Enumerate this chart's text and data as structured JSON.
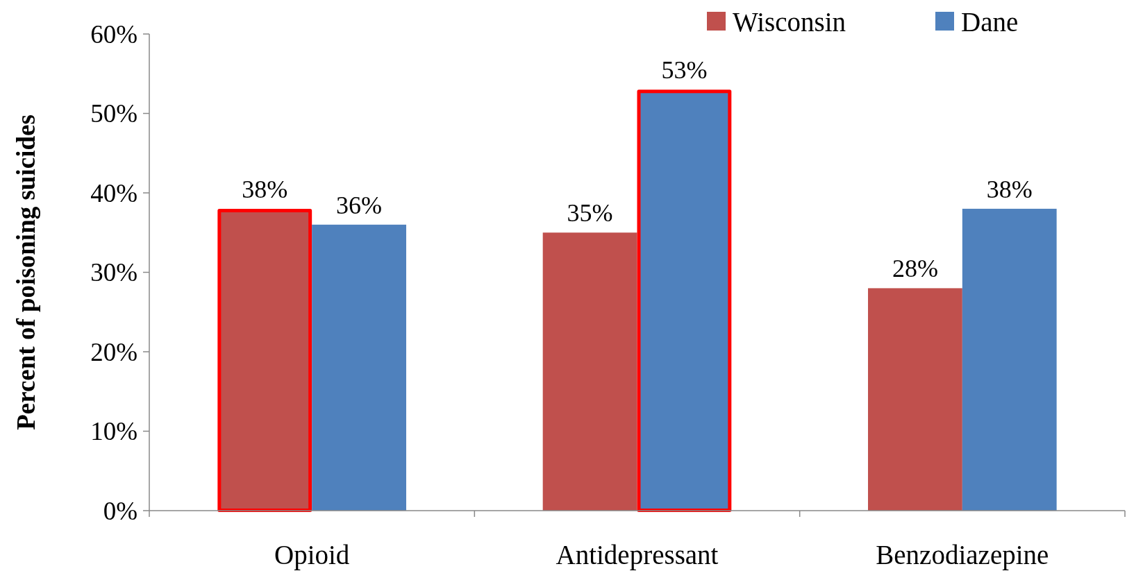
{
  "chart_data": {
    "type": "bar",
    "ylabel": "Percent of poisoning suicides",
    "categories": [
      "Opioid",
      "Antidepressant",
      "Benzodiazepine"
    ],
    "series": [
      {
        "name": "Wisconsin",
        "color": "#c0504d",
        "values": [
          38,
          35,
          28
        ]
      },
      {
        "name": "Dane",
        "color": "#4f81bd",
        "values": [
          36,
          53,
          38
        ]
      }
    ],
    "ylim": [
      0,
      60
    ],
    "yticks": [
      {
        "value": 0,
        "label": "0%"
      },
      {
        "value": 10,
        "label": "10%"
      },
      {
        "value": 20,
        "label": "20%"
      },
      {
        "value": 30,
        "label": "30%"
      },
      {
        "value": 40,
        "label": "40%"
      },
      {
        "value": 50,
        "label": "50%"
      },
      {
        "value": 60,
        "label": "60%"
      }
    ],
    "value_labels": [
      [
        "38%",
        "35%",
        "28%"
      ],
      [
        "36%",
        "53%",
        "38%"
      ]
    ],
    "legend": "top right",
    "grid": false
  }
}
